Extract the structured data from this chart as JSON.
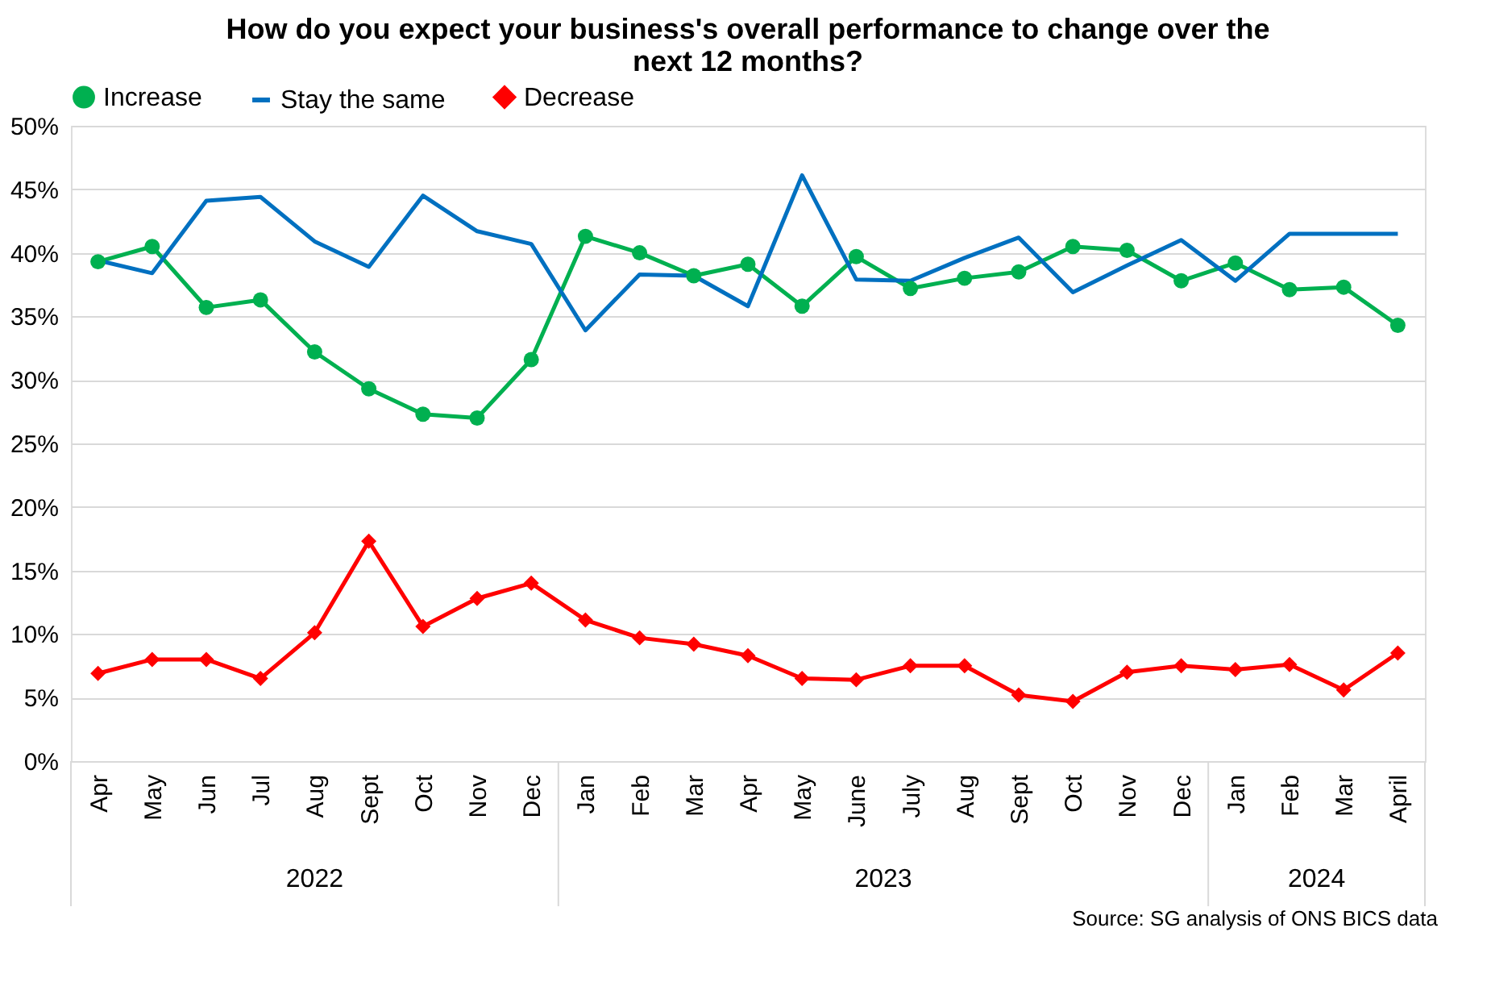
{
  "chart_data": {
    "type": "line",
    "title": "How do you expect your business's overall performance to change over the next 12 months?",
    "categories": [
      "Apr",
      "May",
      "Jun",
      "Jul",
      "Aug",
      "Sept",
      "Oct",
      "Nov",
      "Dec",
      "Jan",
      "Feb",
      "Mar",
      "Apr",
      "May",
      "June",
      "July",
      "Aug",
      "Sept",
      "Oct",
      "Nov",
      "Dec",
      "Jan",
      "Feb",
      "Mar",
      "April"
    ],
    "series": [
      {
        "name": "Increase",
        "color": "#00b050",
        "marker": "circle",
        "values": [
          39.3,
          40.5,
          35.7,
          36.3,
          32.2,
          29.3,
          27.3,
          27.0,
          31.6,
          41.3,
          40.0,
          38.2,
          39.1,
          35.8,
          39.7,
          37.2,
          38.0,
          38.5,
          40.5,
          40.2,
          37.8,
          39.2,
          37.1,
          37.3,
          34.3
        ]
      },
      {
        "name": "Stay the same",
        "color": "#0070c0",
        "marker": "none",
        "values": [
          39.4,
          38.4,
          44.1,
          44.4,
          40.9,
          38.9,
          44.5,
          41.7,
          40.7,
          33.9,
          38.3,
          38.2,
          35.8,
          46.1,
          37.9,
          37.8,
          39.6,
          41.2,
          36.9,
          39.0,
          41.0,
          37.8,
          41.5,
          41.5,
          41.5
        ]
      },
      {
        "name": "Decrease",
        "color": "#ff0000",
        "marker": "diamond",
        "values": [
          6.9,
          8.0,
          8.0,
          6.5,
          10.1,
          17.3,
          10.6,
          12.8,
          14.0,
          11.1,
          9.7,
          9.2,
          8.3,
          6.5,
          6.4,
          7.5,
          7.5,
          5.2,
          4.7,
          7.0,
          7.5,
          7.2,
          7.6,
          5.6,
          8.5
        ]
      }
    ],
    "ylim": [
      0,
      50
    ],
    "yticks": [
      {
        "value": 0,
        "label": "0%"
      },
      {
        "value": 5,
        "label": "5%"
      },
      {
        "value": 10,
        "label": "10%"
      },
      {
        "value": 15,
        "label": "15%"
      },
      {
        "value": 20,
        "label": "20%"
      },
      {
        "value": 25,
        "label": "25%"
      },
      {
        "value": 30,
        "label": "30%"
      },
      {
        "value": 35,
        "label": "35%"
      },
      {
        "value": 40,
        "label": "40%"
      },
      {
        "value": 45,
        "label": "45%"
      },
      {
        "value": 50,
        "label": "50%"
      }
    ],
    "grid": "y",
    "legend": "top",
    "annotations": [
      "2022",
      "2023",
      "2024",
      "Source: SG analysis of ONS BICS data"
    ]
  }
}
